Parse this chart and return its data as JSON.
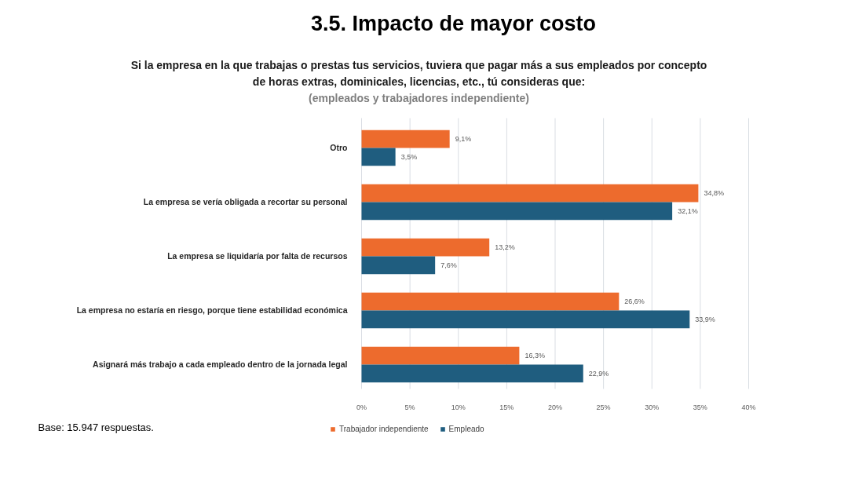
{
  "chart_data": {
    "type": "bar",
    "orientation": "horizontal",
    "title": "3.5. Impacto de mayor costo",
    "subtitle": "Si la empresa en la que trabajas o prestas tus servicios, tuviera que pagar más a sus empleados por concepto de horas extras, dominicales, licencias, etc., tú consideras que:",
    "annotations": [
      "(empleados y trabajadores independiente)",
      "Base: 15.947 respuestas."
    ],
    "categories": [
      "Otro",
      "La empresa se vería obligada a recortar su personal",
      "La empresa se liquidaría por falta de recursos",
      "La empresa no estaría en riesgo, porque tiene estabilidad económica",
      "Asignará más trabajo a cada empleado dentro de la jornada legal"
    ],
    "series": [
      {
        "name": "Trabajador independiente",
        "color": "#ed6b2d",
        "values": [
          9.1,
          34.8,
          13.2,
          26.6,
          16.3
        ],
        "value_labels": [
          "9,1%",
          "34,8%",
          "13,2%",
          "26,6%",
          "16,3%"
        ]
      },
      {
        "name": "Empleado",
        "color": "#1f5d7f",
        "values": [
          3.5,
          32.1,
          7.6,
          33.9,
          22.9
        ],
        "value_labels": [
          "3,5%",
          "32,1%",
          "7,6%",
          "33,9%",
          "22,9%"
        ]
      }
    ],
    "xlim": [
      0,
      40
    ],
    "xticks": [
      {
        "value": 0,
        "label": "0%"
      },
      {
        "value": 5,
        "label": "5%"
      },
      {
        "value": 10,
        "label": "10%"
      },
      {
        "value": 15,
        "label": "15%"
      },
      {
        "value": 20,
        "label": "20%"
      },
      {
        "value": 25,
        "label": "25%"
      },
      {
        "value": 30,
        "label": "30%"
      },
      {
        "value": 35,
        "label": "35%"
      },
      {
        "value": 40,
        "label": "40%"
      }
    ],
    "grid": "x",
    "legend": "bottom"
  }
}
